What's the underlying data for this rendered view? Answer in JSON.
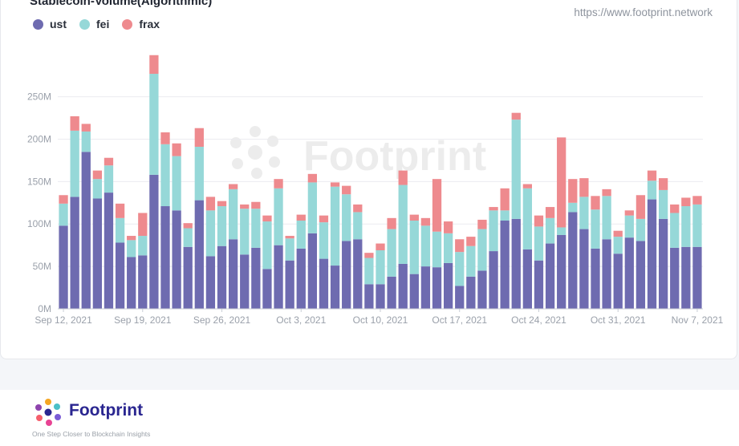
{
  "title": "Stablecoin-Volume(Algorithmic)",
  "source": "https://www.footprint.network",
  "watermark": "Footprint",
  "legend": [
    {
      "name": "ust",
      "color": "#6e6bb0"
    },
    {
      "name": "fei",
      "color": "#96d8d8"
    },
    {
      "name": "frax",
      "color": "#ee8a8e"
    }
  ],
  "chart_data": {
    "type": "bar",
    "stacked": true,
    "title": "Stablecoin-Volume(Algorithmic)",
    "xlabel": "",
    "ylabel": "",
    "ylim": [
      0,
      260000000
    ],
    "y_ticks": [
      {
        "value": 0,
        "label": "0M"
      },
      {
        "value": 50000000,
        "label": "50M"
      },
      {
        "value": 100000000,
        "label": "100M"
      },
      {
        "value": 150000000,
        "label": "150M"
      },
      {
        "value": 200000000,
        "label": "200M"
      },
      {
        "value": 250000000,
        "label": "250M"
      }
    ],
    "x_ticks": [
      {
        "index": 0,
        "label": "Sep 12, 2021"
      },
      {
        "index": 7,
        "label": "Sep 19, 2021"
      },
      {
        "index": 14,
        "label": "Sep 26, 2021"
      },
      {
        "index": 21,
        "label": "Oct 3, 2021"
      },
      {
        "index": 28,
        "label": "Oct 10, 2021"
      },
      {
        "index": 35,
        "label": "Oct 17, 2021"
      },
      {
        "index": 42,
        "label": "Oct 24, 2021"
      },
      {
        "index": 49,
        "label": "Oct 31, 2021"
      },
      {
        "index": 56,
        "label": "Nov 7, 2021"
      }
    ],
    "categories": [
      "Sep 12",
      "Sep 13",
      "Sep 14",
      "Sep 15",
      "Sep 16",
      "Sep 17",
      "Sep 18",
      "Sep 19",
      "Sep 20",
      "Sep 21",
      "Sep 22",
      "Sep 23",
      "Sep 24",
      "Sep 25",
      "Sep 26",
      "Sep 27",
      "Sep 28",
      "Sep 29",
      "Sep 30",
      "Oct 1",
      "Oct 2",
      "Oct 3",
      "Oct 4",
      "Oct 5",
      "Oct 6",
      "Oct 7",
      "Oct 8",
      "Oct 9",
      "Oct 10",
      "Oct 11",
      "Oct 12",
      "Oct 13",
      "Oct 14",
      "Oct 15",
      "Oct 16",
      "Oct 17",
      "Oct 18",
      "Oct 19",
      "Oct 20",
      "Oct 21",
      "Oct 22",
      "Oct 23",
      "Oct 24",
      "Oct 25",
      "Oct 26",
      "Oct 27",
      "Oct 28",
      "Oct 29",
      "Oct 30",
      "Oct 31",
      "Nov 1",
      "Nov 2",
      "Nov 3",
      "Nov 4",
      "Nov 5",
      "Nov 6",
      "Nov 7"
    ],
    "series": [
      {
        "name": "ust",
        "color": "#6e6bb0",
        "values": [
          98,
          132,
          185,
          130,
          137,
          78,
          61,
          63,
          158,
          121,
          116,
          73,
          128,
          62,
          74,
          82,
          64,
          72,
          47,
          75,
          57,
          71,
          89,
          59,
          51,
          80,
          82,
          29,
          29,
          38,
          53,
          41,
          50,
          49,
          54,
          27,
          38,
          45,
          68,
          104,
          106,
          70,
          57,
          77,
          87,
          114,
          94,
          71,
          82,
          65,
          84,
          80,
          129,
          106,
          72,
          73,
          73
        ]
      },
      {
        "name": "fei",
        "color": "#96d8d8",
        "values": [
          26,
          78,
          24,
          23,
          32,
          29,
          20,
          23,
          119,
          73,
          64,
          22,
          63,
          54,
          47,
          59,
          54,
          46,
          56,
          67,
          26,
          33,
          60,
          43,
          93,
          55,
          32,
          31,
          40,
          56,
          93,
          63,
          48,
          42,
          35,
          40,
          36,
          49,
          48,
          12,
          117,
          72,
          40,
          30,
          9,
          11,
          38,
          46,
          51,
          20,
          26,
          26,
          22,
          34,
          41,
          48,
          50
        ]
      },
      {
        "name": "frax",
        "color": "#ee8a8e",
        "values": [
          10,
          17,
          9,
          10,
          9,
          17,
          5,
          27,
          22,
          14,
          15,
          6,
          22,
          16,
          6,
          6,
          5,
          8,
          7,
          11,
          3,
          7,
          10,
          8,
          5,
          10,
          9,
          6,
          8,
          13,
          17,
          7,
          9,
          62,
          14,
          15,
          11,
          11,
          4,
          26,
          8,
          5,
          13,
          13,
          106,
          28,
          22,
          16,
          8,
          7,
          6,
          28,
          12,
          14,
          10,
          10,
          10
        ]
      }
    ],
    "value_unit": "M"
  },
  "footer": {
    "brand": "Footprint",
    "tagline": "One Step Closer to Blockchain Insights"
  }
}
